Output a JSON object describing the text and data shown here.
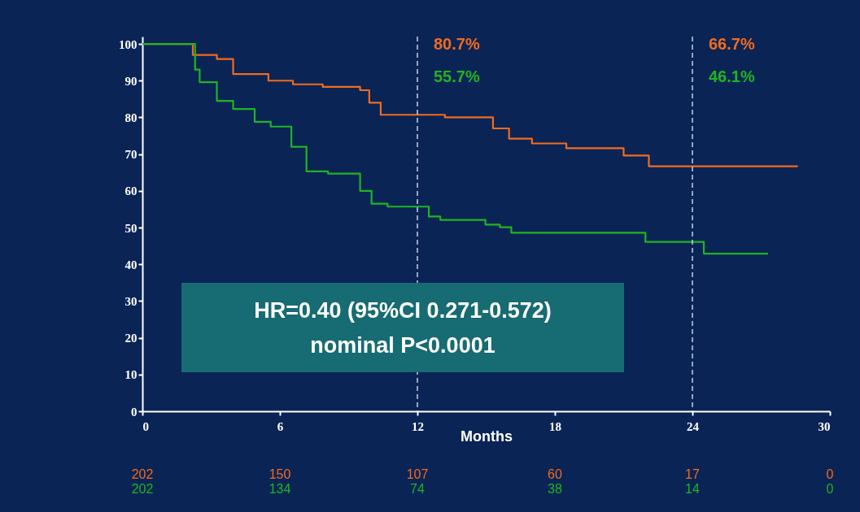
{
  "chart_data": {
    "type": "step",
    "xlabel": "Months",
    "xlim": [
      0,
      30
    ],
    "xticks": [
      0,
      6,
      12,
      18,
      24,
      30
    ],
    "ylim": [
      0,
      102
    ],
    "yticks": [
      0,
      10,
      20,
      30,
      40,
      50,
      60,
      70,
      80,
      90,
      100
    ],
    "line_style": "solid",
    "series": [
      {
        "color": "#f26b1d",
        "x": [
          0,
          2.2,
          3.25,
          3.96,
          5.5,
          6.57,
          7.87,
          9.5,
          9.9,
          10.4,
          13.2,
          15.3,
          16.0,
          17.0,
          18.5,
          21.0,
          22.1,
          28.6
        ],
        "values": [
          100,
          97,
          95.9,
          91.8,
          90,
          89,
          88.3,
          87.4,
          84,
          80.7,
          80,
          77,
          74.2,
          72.9,
          71.6,
          69.6,
          66.7,
          66.7
        ]
      },
      {
        "color": "#1fb51f",
        "x": [
          0,
          2.3,
          2.5,
          3.25,
          3.96,
          4.9,
          5.6,
          6.5,
          7.16,
          8.1,
          9.5,
          10.0,
          10.7,
          12.5,
          13.0,
          14.97,
          15.6,
          16.1,
          21.95,
          24.5,
          27.3
        ],
        "values": [
          100,
          93,
          89.6,
          84.5,
          82.3,
          78.8,
          77.5,
          72,
          65.3,
          64.7,
          60,
          56.5,
          55.7,
          53,
          52.1,
          50.8,
          50.1,
          48.6,
          46.1,
          42.9,
          42.9
        ]
      }
    ],
    "ref_lines": [
      {
        "axis": "x",
        "value": 12,
        "color": "#c8d0e0",
        "line_style": "dashed"
      },
      {
        "axis": "x",
        "value": 24,
        "color": "#c8d0e0",
        "line_style": "dashed"
      }
    ],
    "annotations": [
      "80.7%",
      "55.7%",
      "66.7%",
      "46.1%",
      "HR=0.40 (95%CI 0.271-0.572)",
      "nominal P<0.0001",
      "202",
      "150",
      "107",
      "60",
      "17",
      "0",
      "202",
      "134",
      "74",
      "38",
      "14",
      "0"
    ]
  }
}
